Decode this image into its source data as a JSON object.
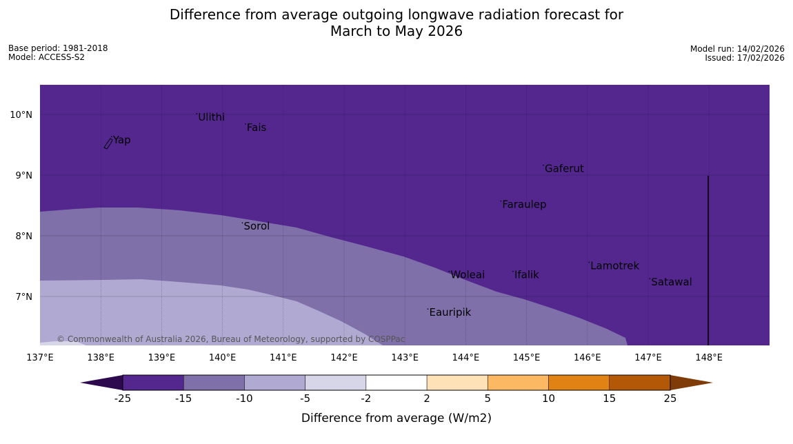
{
  "header": {
    "title_line1": "Difference from average outgoing longwave radiation forecast for",
    "title_line2": "March to May 2026",
    "base_period": "Base period: 1981-2018",
    "model": "Model: ACCESS-S2",
    "model_run": "Model run: 14/02/2026",
    "issued": "Issued: 17/02/2026"
  },
  "map": {
    "copyright": "© Commonwealth of Australia 2026, Bureau of Meteorology, supported by COSPPac",
    "lon_labels": [
      "137°E",
      "138°E",
      "139°E",
      "140°E",
      "141°E",
      "142°E",
      "143°E",
      "144°E",
      "145°E",
      "146°E",
      "147°E",
      "148°E"
    ],
    "lat_labels": [
      "10°N",
      "9°N",
      "8°N",
      "7°N"
    ],
    "places": [
      {
        "name": "Yap",
        "lon": 138.2,
        "lat": 9.52
      },
      {
        "name": "Ulithi",
        "lon": 139.6,
        "lat": 9.9
      },
      {
        "name": "Fais",
        "lon": 140.4,
        "lat": 9.73
      },
      {
        "name": "Gaferut",
        "lon": 145.3,
        "lat": 9.05
      },
      {
        "name": "Faraulep",
        "lon": 144.6,
        "lat": 8.46
      },
      {
        "name": "Sorol",
        "lon": 140.35,
        "lat": 8.1
      },
      {
        "name": "Woleai",
        "lon": 143.75,
        "lat": 7.3
      },
      {
        "name": "Ifalik",
        "lon": 144.8,
        "lat": 7.3
      },
      {
        "name": "Lamotrek",
        "lon": 146.05,
        "lat": 7.45
      },
      {
        "name": "Satawal",
        "lon": 147.05,
        "lat": 7.18
      },
      {
        "name": "Eauripik",
        "lon": 143.4,
        "lat": 6.68
      }
    ],
    "colors": {
      "bin_minus25_minus15": "#54278f",
      "bin_minus15_minus10": "#7f70aa",
      "bin_minus10_minus5": "#b0aad2",
      "bin_minus5_minus2": "#d6d6e8"
    }
  },
  "colorbar": {
    "label": "Difference from average (W/m2)",
    "ticks": [
      "-25",
      "-15",
      "-10",
      "-5",
      "-2",
      "2",
      "5",
      "10",
      "15",
      "25"
    ],
    "colors": [
      "#54278f",
      "#7f70aa",
      "#b0aad2",
      "#d6d6e8",
      "#ffffff",
      "#fee1b6",
      "#fdb863",
      "#e08214",
      "#b35806"
    ],
    "under_color": "#2d0a4e",
    "over_color": "#7f3b08"
  }
}
